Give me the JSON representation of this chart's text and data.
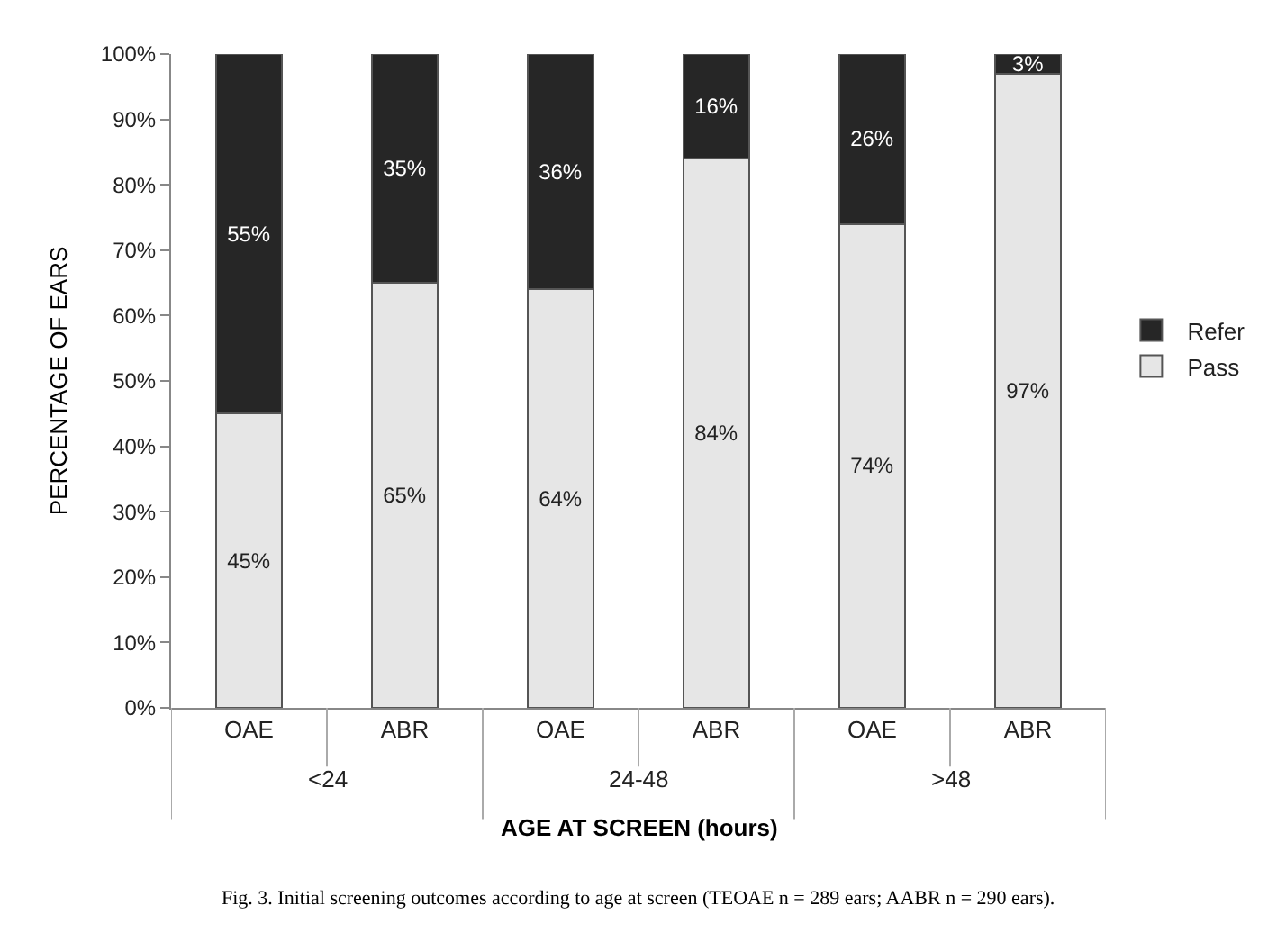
{
  "chart_data": {
    "type": "bar",
    "stacked": true,
    "ylabel": "PERCENTAGE OF EARS",
    "xlabel": "AGE AT SCREEN (hours)",
    "categories": [
      "OAE",
      "ABR",
      "OAE",
      "ABR",
      "OAE",
      "ABR"
    ],
    "series": [
      {
        "name": "Pass",
        "color": "#e6e6e6",
        "values": [
          45,
          65,
          64,
          84,
          74,
          97
        ],
        "value_labels": [
          "45%",
          "65%",
          "64%",
          "84%",
          "74%",
          "97%"
        ]
      },
      {
        "name": "Refer",
        "color": "#262626",
        "values": [
          55,
          35,
          36,
          16,
          26,
          3
        ],
        "value_labels": [
          "55%",
          "35%",
          "36%",
          "16%",
          "26%",
          "3%"
        ]
      }
    ],
    "ylim": [
      0,
      100
    ],
    "yticks": [
      {
        "value": 0,
        "label": "0%"
      },
      {
        "value": 10,
        "label": "10%"
      },
      {
        "value": 20,
        "label": "20%"
      },
      {
        "value": 30,
        "label": "30%"
      },
      {
        "value": 40,
        "label": "40%"
      },
      {
        "value": 50,
        "label": "50%"
      },
      {
        "value": 60,
        "label": "60%"
      },
      {
        "value": 70,
        "label": "70%"
      },
      {
        "value": 80,
        "label": "80%"
      },
      {
        "value": 90,
        "label": "90%"
      },
      {
        "value": 100,
        "label": "100%"
      }
    ],
    "legend": "right",
    "annotations": [
      "<24",
      "24-48",
      ">48",
      "Fig. 3. Initial screening outcomes according to age at screen (TEOAE n = 289 ears; AABR n = 290 ears)."
    ]
  }
}
